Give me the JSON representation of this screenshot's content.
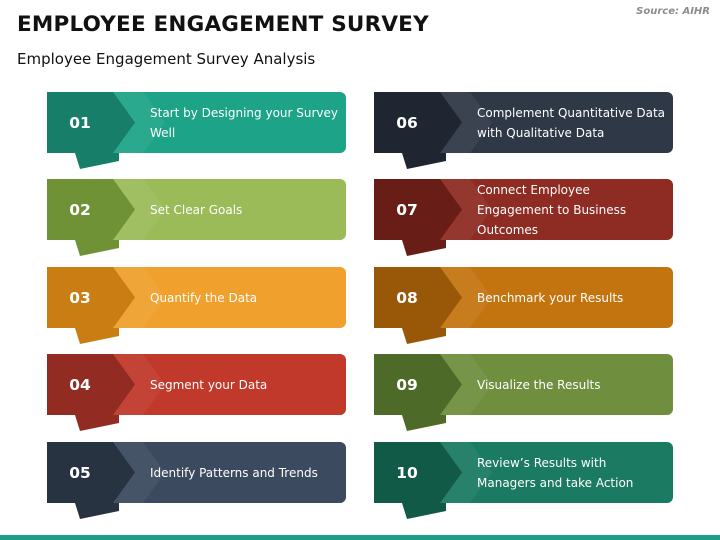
{
  "header": {
    "title": "EMPLOYEE ENGAGEMENT SURVEY",
    "subtitle": "Employee Engagement Survey Analysis",
    "source": "Source: AIHR"
  },
  "cards": [
    {
      "num": "01",
      "text": "Start by Designing your Survey Well",
      "color": "#1da488",
      "dark": "#177f69"
    },
    {
      "num": "02",
      "text": "Set Clear Goals",
      "color": "#9bbb59",
      "dark": "#6f9237"
    },
    {
      "num": "03",
      "text": "Quantify the Data",
      "color": "#f0a02c",
      "dark": "#c97d13"
    },
    {
      "num": "04",
      "text": "Segment your Data",
      "color": "#c0392b",
      "dark": "#922b21"
    },
    {
      "num": "05",
      "text": "Identify Patterns and Trends",
      "color": "#3b4a5e",
      "dark": "#283341"
    },
    {
      "num": "06",
      "text": "Complement Quantitative Data with Qualitative Data",
      "color": "#2f3847",
      "dark": "#1f2631"
    },
    {
      "num": "07",
      "text": "Connect Employee Engagement to Business Outcomes",
      "color": "#8e2b22",
      "dark": "#691d17"
    },
    {
      "num": "08",
      "text": "Benchmark your Results",
      "color": "#c4740f",
      "dark": "#985808"
    },
    {
      "num": "09",
      "text": "Visualize the Results",
      "color": "#6f8f3e",
      "dark": "#4e6a28"
    },
    {
      "num": "10",
      "text": "Review’s Results with Managers and take Action",
      "color": "#1a7a62",
      "dark": "#125a48"
    }
  ]
}
